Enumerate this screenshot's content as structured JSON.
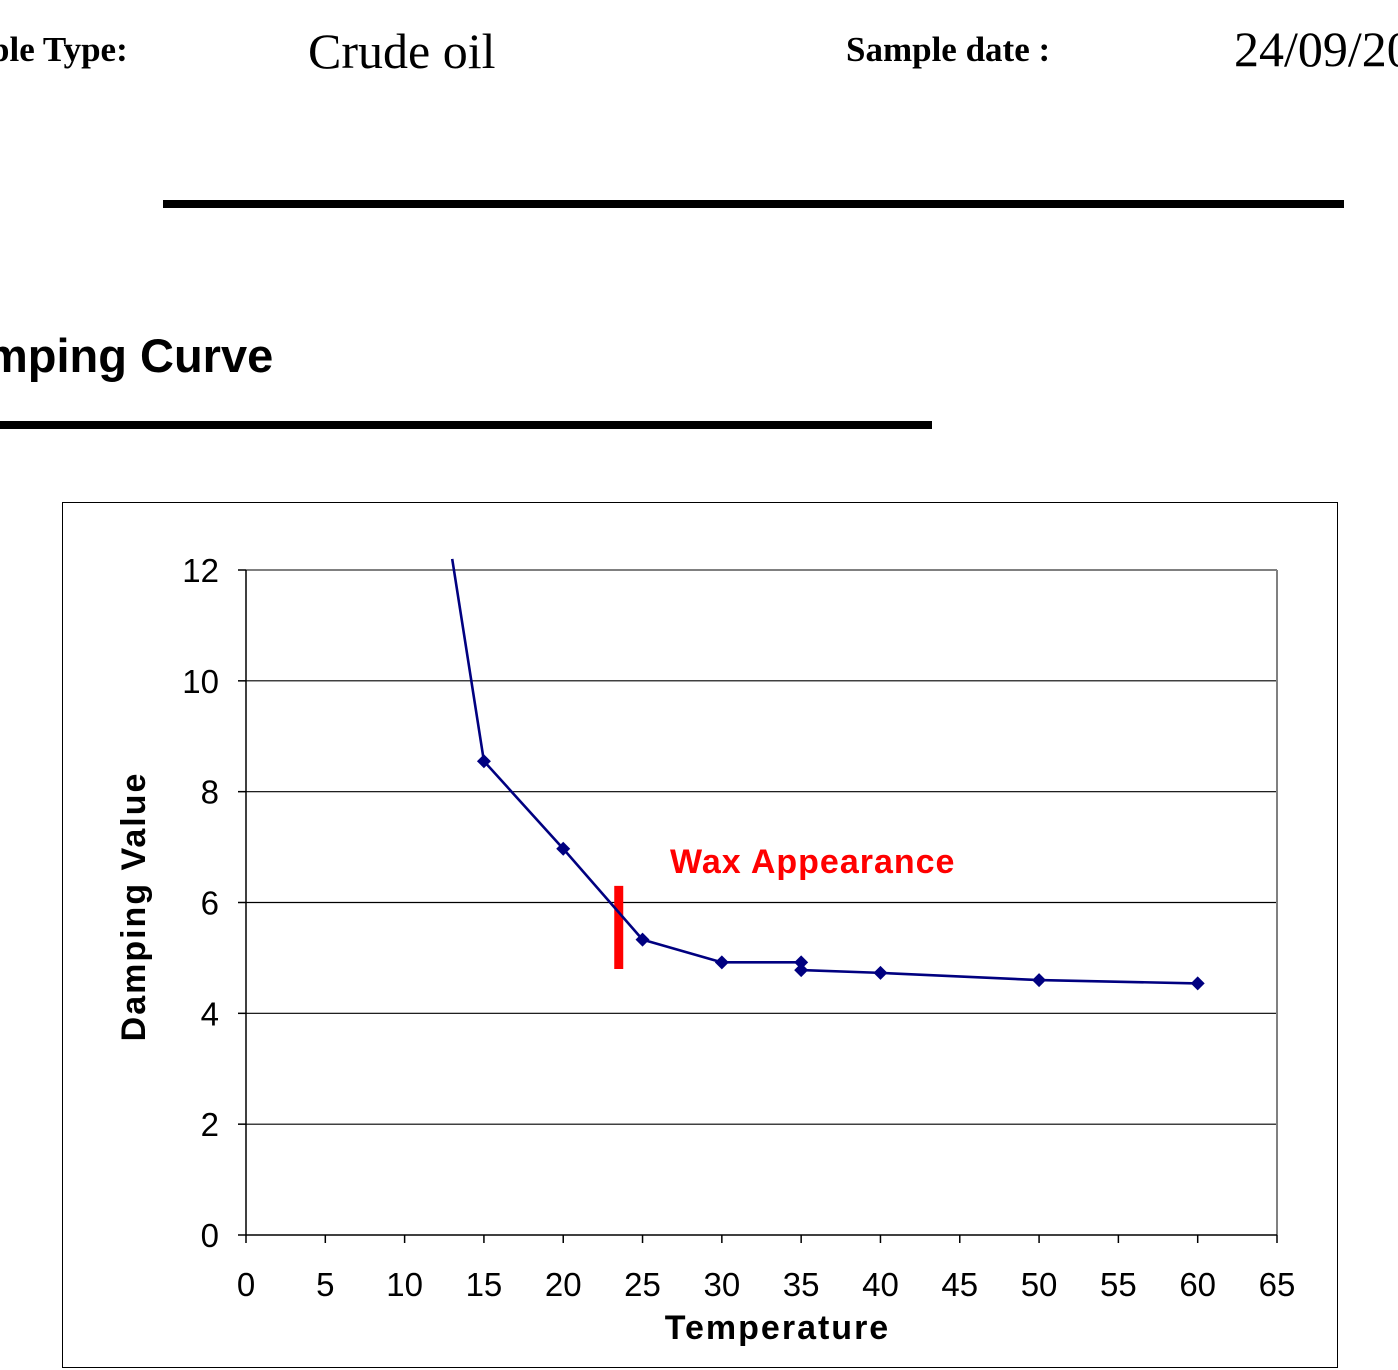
{
  "header": {
    "sample_type_label": "ple Type:",
    "sample_type_value": "Crude oil",
    "sample_date_label": "Sample date :",
    "sample_date_value": "24/09/20"
  },
  "section": {
    "title": "mping Curve"
  },
  "chart_data": {
    "type": "line",
    "title": "",
    "xlabel": "Temperature",
    "ylabel": "Damping Value",
    "xlim": [
      0,
      65
    ],
    "ylim": [
      0,
      12
    ],
    "x_ticks": [
      0,
      5,
      10,
      15,
      20,
      25,
      30,
      35,
      40,
      45,
      50,
      55,
      60,
      65
    ],
    "y_ticks": [
      0,
      2,
      4,
      6,
      8,
      10,
      12
    ],
    "grid": "horizontal",
    "legend": "none",
    "series": [
      {
        "color": "#000080",
        "marker": "diamond",
        "points": [
          {
            "x": 13,
            "y": 12.2,
            "marker": false
          },
          {
            "x": 15,
            "y": 8.55
          },
          {
            "x": 20,
            "y": 6.97
          },
          {
            "x": 25,
            "y": 5.33
          },
          {
            "x": 30,
            "y": 4.92
          },
          {
            "x": 35,
            "y": 4.92
          },
          {
            "x": 35,
            "y": 4.78
          },
          {
            "x": 40,
            "y": 4.73
          },
          {
            "x": 50,
            "y": 4.6
          },
          {
            "x": 60,
            "y": 4.54
          }
        ]
      }
    ],
    "annotations": [
      {
        "text": "Wax Appearance",
        "color": "#ff0000"
      }
    ],
    "markers": [
      {
        "type": "vertical-bar",
        "x": 23.5,
        "y_from": 4.8,
        "y_to": 6.3,
        "color": "#ff0000"
      }
    ]
  }
}
